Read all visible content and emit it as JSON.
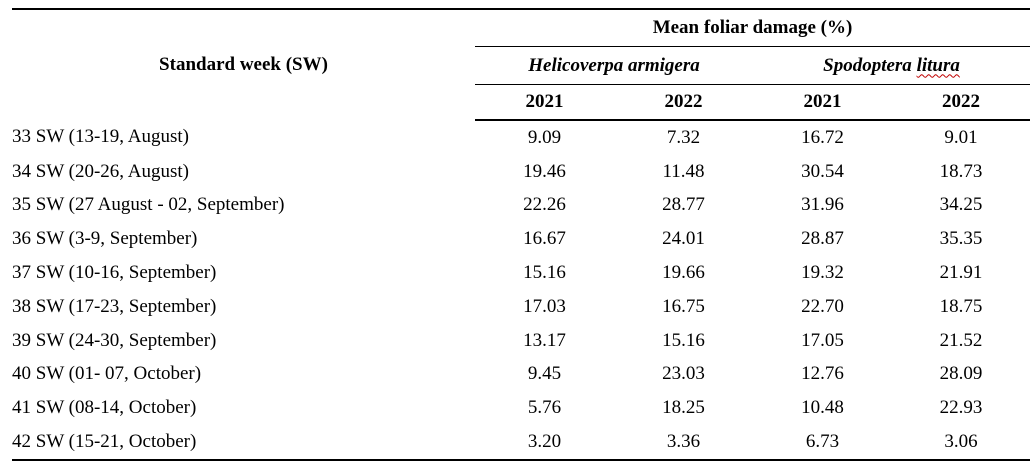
{
  "table": {
    "header": {
      "row_label": "Standard week (SW)",
      "group_label": "Mean foliar damage (%)",
      "species": [
        {
          "genus": "Helicoverpa",
          "epithet": "armigera"
        },
        {
          "genus": "Spodoptera",
          "epithet": "litura"
        }
      ],
      "years": [
        "2021",
        "2022",
        "2021",
        "2022"
      ]
    },
    "rows": [
      {
        "week": "33 SW (13-19, August)",
        "values": [
          "9.09",
          "7.32",
          "16.72",
          "9.01"
        ]
      },
      {
        "week": "34 SW (20-26, August)",
        "values": [
          "19.46",
          "11.48",
          "30.54",
          "18.73"
        ]
      },
      {
        "week": "35 SW (27 August - 02, September)",
        "values": [
          "22.26",
          "28.77",
          "31.96",
          "34.25"
        ]
      },
      {
        "week": "36 SW (3-9, September)",
        "values": [
          "16.67",
          "24.01",
          "28.87",
          "35.35"
        ]
      },
      {
        "week": "37 SW (10-16, September)",
        "values": [
          "15.16",
          "19.66",
          "19.32",
          "21.91"
        ]
      },
      {
        "week": "38 SW (17-23, September)",
        "values": [
          "17.03",
          "16.75",
          "22.70",
          "18.75"
        ]
      },
      {
        "week": "39 SW (24-30, September)",
        "values": [
          "13.17",
          "15.16",
          "17.05",
          "21.52"
        ]
      },
      {
        "week": "40 SW (01- 07, October)",
        "values": [
          "9.45",
          "23.03",
          "12.76",
          "28.09"
        ]
      },
      {
        "week": "41 SW (08-14, October)",
        "values": [
          "5.76",
          "18.25",
          "10.48",
          "22.93"
        ]
      },
      {
        "week": "42 SW (15-21, October)",
        "values": [
          "3.20",
          "3.36",
          "6.73",
          "3.06"
        ]
      }
    ]
  }
}
